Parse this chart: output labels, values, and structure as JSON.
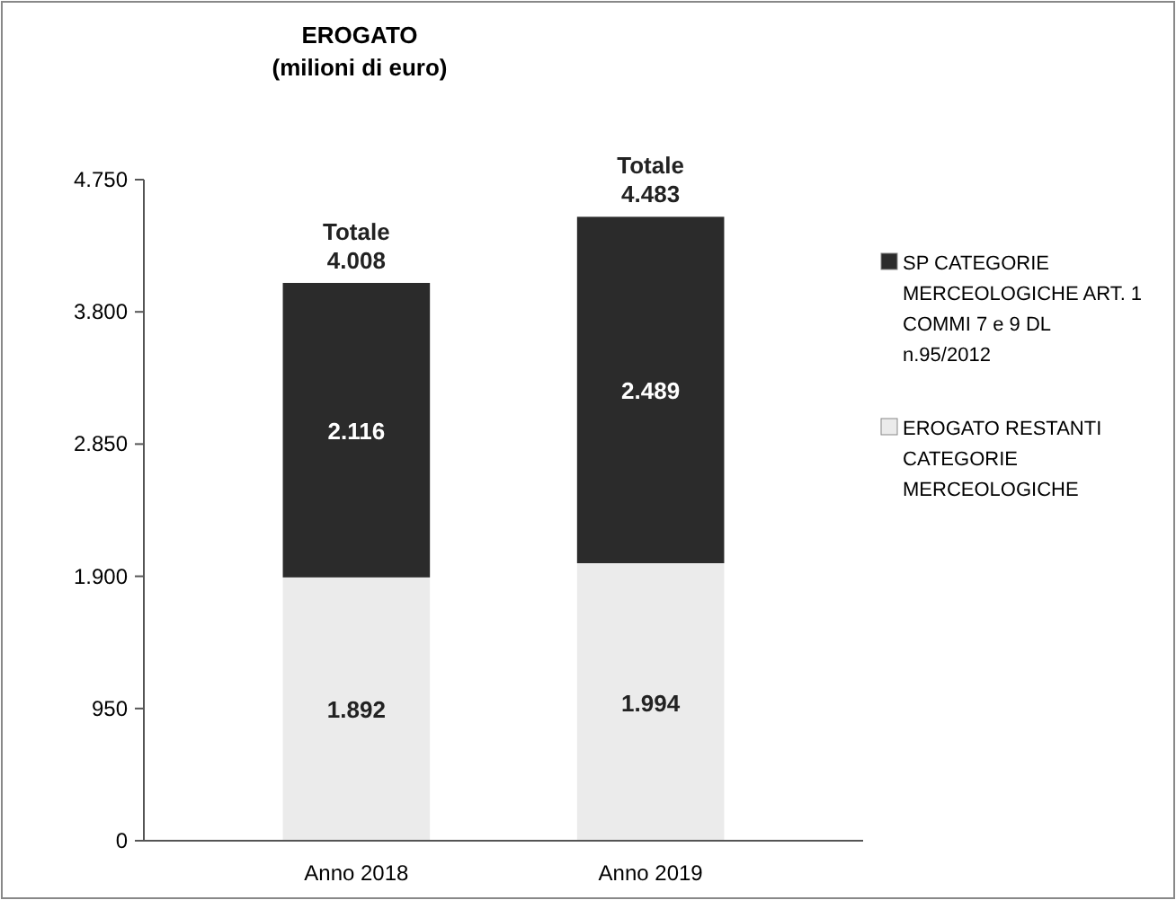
{
  "chart_data": {
    "type": "bar",
    "title": "EROGATO",
    "subtitle": "(milioni di euro)",
    "categories": [
      "Anno 2018",
      "Anno 2019"
    ],
    "stacked": true,
    "series": [
      {
        "name": "EROGATO RESTANTI CATEGORIE MERCEOLOGICHE",
        "color": "#ebebeb",
        "values": [
          1892,
          1994
        ],
        "value_labels": [
          "1.892",
          "1.994"
        ]
      },
      {
        "name": "SP CATEGORIE MERCEOLOGICHE ART. 1 COMMI 7 e 9 DL n.95/2012",
        "color": "#2b2b2b",
        "values": [
          2116,
          2489
        ],
        "value_labels": [
          "2.116",
          "2.489"
        ]
      }
    ],
    "totals": [
      "Totale 4.008",
      "Totale 4.483"
    ],
    "ylim": [
      0,
      4750
    ],
    "yticks": [
      {
        "value": 0,
        "label": "0"
      },
      {
        "value": 950,
        "label": "950"
      },
      {
        "value": 1900,
        "label": "1.900"
      },
      {
        "value": 2850,
        "label": "2.850"
      },
      {
        "value": 3800,
        "label": "3.800"
      },
      {
        "value": 4750,
        "label": "4.750"
      }
    ],
    "grid": false,
    "legend": "right"
  }
}
